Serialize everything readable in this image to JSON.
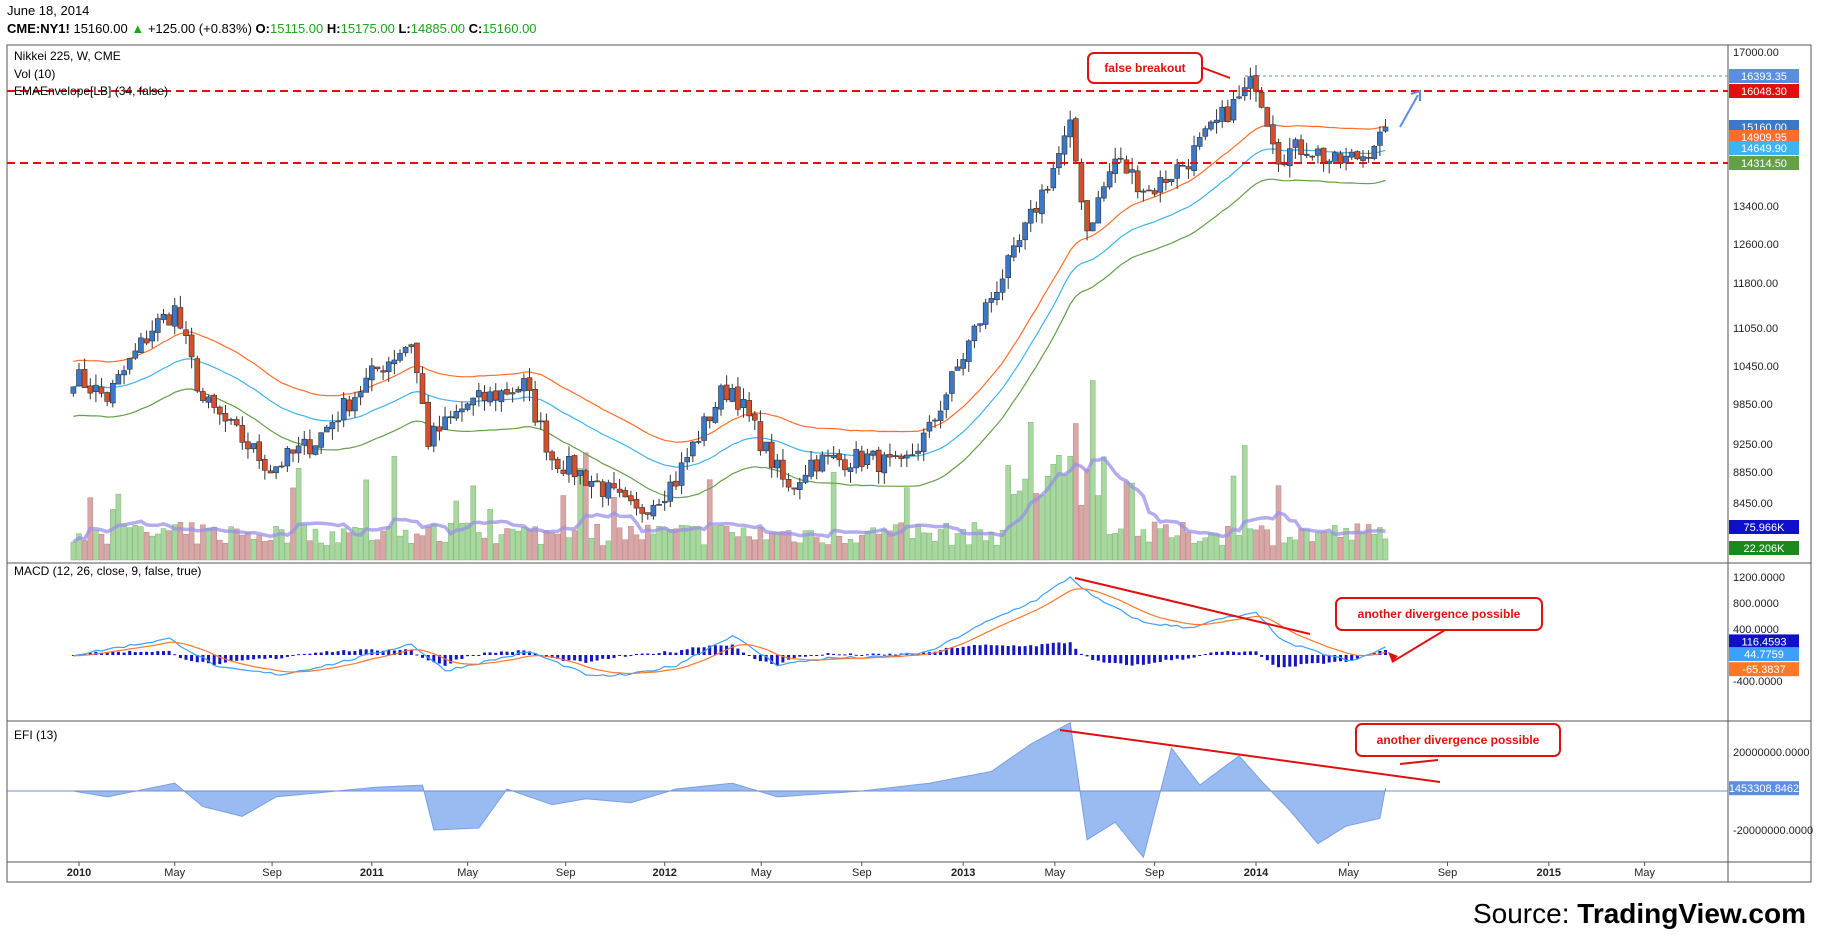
{
  "header": {
    "date": "June 18, 2014",
    "symbol": "CME:NY1!",
    "last": "15160.00",
    "change": "+125.00 (+0.83%)",
    "o_label": "O:",
    "o": "15115.00",
    "h_label": "H:",
    "h": "15175.00",
    "l_label": "L:",
    "l": "14885.00",
    "c_label": "C:",
    "c": "15160.00"
  },
  "footer": {
    "source_prefix": "Source: ",
    "source_brand": "TradingView.com"
  },
  "colors": {
    "up": "#3c78c8",
    "down": "#d2502d",
    "ema_upper": "#ff6e28",
    "ema_mid": "#3cb4f0",
    "ema_lower": "#64a046",
    "vol_up": "#a8d8a0",
    "vol_down": "#d8a8a8",
    "vol_ma": "#9a90e8",
    "macd_line": "#3ca0ff",
    "signal_line": "#ff7828",
    "hist": "#1414c8",
    "efi_fill": "#8eb4f0",
    "annotation": "#e01010",
    "hline": "#e01010"
  },
  "chart_data": [
    {
      "type": "line",
      "title": "Nikkei 225, W, CME",
      "indicators": [
        "Vol (10)",
        "EMAEnvelope[LB] (34, false)"
      ],
      "x_labels": [
        "2010",
        "May",
        "Sep",
        "2011",
        "May",
        "Sep",
        "2012",
        "May",
        "Sep",
        "2013",
        "May",
        "Sep",
        "2014",
        "May",
        "Sep",
        "2015",
        "May"
      ],
      "y_ticks": [
        "17000.00",
        "13400.00",
        "12600.00",
        "11800.00",
        "11050.00",
        "10450.00",
        "9850.00",
        "9250.00",
        "8850.00",
        "8450.00"
      ],
      "price_anchors": [
        [
          "2009-12-28",
          10300
        ],
        [
          "2010-02-08",
          9950
        ],
        [
          "2010-04-05",
          11050
        ],
        [
          "2010-05-03",
          11350
        ],
        [
          "2010-06-07",
          9900
        ],
        [
          "2010-08-30",
          8900
        ],
        [
          "2010-10-25",
          9300
        ],
        [
          "2011-01-10",
          10400
        ],
        [
          "2011-02-21",
          10850
        ],
        [
          "2011-03-14",
          9300
        ],
        [
          "2011-05-02",
          9850
        ],
        [
          "2011-07-11",
          10150
        ],
        [
          "2011-08-15",
          9050
        ],
        [
          "2011-10-10",
          8700
        ],
        [
          "2011-11-28",
          8300
        ],
        [
          "2012-01-16",
          8750
        ],
        [
          "2012-03-12",
          10000
        ],
        [
          "2012-03-26",
          10100
        ],
        [
          "2012-05-07",
          9150
        ],
        [
          "2012-06-04",
          8600
        ],
        [
          "2012-07-02",
          9000
        ],
        [
          "2012-09-10",
          9050
        ],
        [
          "2012-10-22",
          8900
        ],
        [
          "2012-11-26",
          9450
        ],
        [
          "2013-01-14",
          10800
        ],
        [
          "2013-03-11",
          12350
        ],
        [
          "2013-04-29",
          14200
        ],
        [
          "2013-05-20",
          15100
        ],
        [
          "2013-06-10",
          12900
        ],
        [
          "2013-07-15",
          14400
        ],
        [
          "2013-08-26",
          13700
        ],
        [
          "2013-10-14",
          14400
        ],
        [
          "2013-11-25",
          15400
        ],
        [
          "2013-12-23",
          16000
        ],
        [
          "2014-01-06",
          16300
        ],
        [
          "2014-02-03",
          14500
        ],
        [
          "2014-03-10",
          14700
        ],
        [
          "2014-04-14",
          14300
        ],
        [
          "2014-05-19",
          14500
        ],
        [
          "2014-06-16",
          15160
        ]
      ],
      "hlines": [
        16048.3,
        14314.5
      ],
      "dotted_hline": 16393.35,
      "price_tags": [
        {
          "value": "16393.35",
          "color": "#5b8de0"
        },
        {
          "value": "16048.30",
          "color": "#e01010"
        },
        {
          "value": "15160.00",
          "color": "#3c78c8"
        },
        {
          "value": "14909.95",
          "color": "#ff6e28"
        },
        {
          "value": "14649.90",
          "color": "#3cb4f0"
        },
        {
          "value": "14314.50",
          "color": "#64a046"
        }
      ],
      "volume_tags": [
        {
          "value": "75.966K",
          "color": "#1010c8"
        },
        {
          "value": "22.206K",
          "color": "#1a8a1a"
        }
      ],
      "annotations": [
        "false breakout"
      ]
    },
    {
      "type": "line",
      "title": "MACD (12, 26, close, 9, false, true)",
      "y_ticks": [
        "1200.0000",
        "800.0000",
        "400.0000",
        "-400.0000"
      ],
      "macd_anchors": [
        [
          "2009-12-28",
          0
        ],
        [
          "2010-04-26",
          250
        ],
        [
          "2010-06-28",
          -200
        ],
        [
          "2010-09-13",
          -300
        ],
        [
          "2010-11-22",
          -120
        ],
        [
          "2011-02-21",
          170
        ],
        [
          "2011-04-04",
          -240
        ],
        [
          "2011-07-18",
          50
        ],
        [
          "2011-10-03",
          -330
        ],
        [
          "2011-11-21",
          -300
        ],
        [
          "2012-01-16",
          -160
        ],
        [
          "2012-03-26",
          300
        ],
        [
          "2012-05-21",
          -150
        ],
        [
          "2012-07-23",
          -50
        ],
        [
          "2012-10-01",
          -30
        ],
        [
          "2012-11-26",
          50
        ],
        [
          "2013-02-04",
          500
        ],
        [
          "2013-04-08",
          850
        ],
        [
          "2013-05-20",
          1200
        ],
        [
          "2013-06-17",
          900
        ],
        [
          "2013-08-19",
          500
        ],
        [
          "2013-10-14",
          420
        ],
        [
          "2013-11-25",
          560
        ],
        [
          "2014-01-06",
          640
        ],
        [
          "2014-02-10",
          200
        ],
        [
          "2014-03-24",
          40
        ],
        [
          "2014-05-05",
          -100
        ],
        [
          "2014-06-16",
          116.4593
        ]
      ],
      "tags": [
        {
          "value": "116.4593",
          "color": "#1010c8"
        },
        {
          "value": "44.7759",
          "color": "#3ca0ff"
        },
        {
          "value": "-65.3837",
          "color": "#ff7828"
        }
      ],
      "annotations": [
        "another divergence possible"
      ]
    },
    {
      "type": "area",
      "title": "EFI (13)",
      "y_ticks": [
        "20000000.0000",
        "-20000000.0000"
      ],
      "efi_anchors": [
        [
          "2009-12-28",
          0
        ],
        [
          "2010-02-08",
          -3000000
        ],
        [
          "2010-05-03",
          4000000
        ],
        [
          "2010-06-07",
          -8000000
        ],
        [
          "2010-07-26",
          -13000000
        ],
        [
          "2010-09-06",
          -3000000
        ],
        [
          "2011-01-10",
          2000000
        ],
        [
          "2011-03-07",
          3000000
        ],
        [
          "2011-03-21",
          -20000000
        ],
        [
          "2011-05-16",
          -19000000
        ],
        [
          "2011-06-20",
          1000000
        ],
        [
          "2011-08-15",
          -7000000
        ],
        [
          "2011-09-26",
          -4000000
        ],
        [
          "2011-11-21",
          -6000000
        ],
        [
          "2012-01-16",
          1000000
        ],
        [
          "2012-03-26",
          4000000
        ],
        [
          "2012-05-21",
          -3000000
        ],
        [
          "2012-09-03",
          0
        ],
        [
          "2012-11-26",
          4000000
        ],
        [
          "2013-02-11",
          10000000
        ],
        [
          "2013-04-01",
          24000000
        ],
        [
          "2013-05-20",
          35000000
        ],
        [
          "2013-06-10",
          -25000000
        ],
        [
          "2013-07-15",
          -16000000
        ],
        [
          "2013-08-19",
          -34000000
        ],
        [
          "2013-09-23",
          22000000
        ],
        [
          "2013-10-28",
          3000000
        ],
        [
          "2013-12-16",
          18000000
        ],
        [
          "2014-01-13",
          5000000
        ],
        [
          "2014-02-17",
          -10000000
        ],
        [
          "2014-03-24",
          -27000000
        ],
        [
          "2014-04-28",
          -18000000
        ],
        [
          "2014-06-09",
          -14000000
        ],
        [
          "2014-06-16",
          1453308.8462
        ]
      ],
      "tags": [
        {
          "value": "1453308.8462",
          "color": "#5b8de0"
        }
      ],
      "annotations": [
        "another divergence possible"
      ]
    }
  ]
}
